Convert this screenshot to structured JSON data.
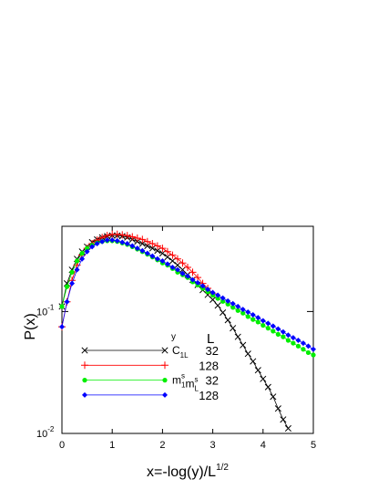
{
  "chart_data": {
    "type": "line",
    "log_y": true,
    "xlabel": {
      "text": "x=-log(y)/L",
      "sup": "1/2"
    },
    "ylabel": "P(x)",
    "xlim": [
      0,
      5
    ],
    "ylim": [
      0.01,
      0.5
    ],
    "xticks": [
      0,
      1,
      2,
      3,
      4,
      5
    ],
    "yticks": [
      {
        "value": 0.01,
        "label": "10",
        "exponent": "-2"
      },
      {
        "value": 0.1,
        "label": "10",
        "exponent": "-1"
      }
    ],
    "legend": {
      "title": "y",
      "L_header": "L"
    },
    "series": [
      {
        "name": [
          {
            "text": "C",
            "sub": "1L"
          }
        ],
        "L": 32,
        "color": "#000000",
        "marker": "x",
        "x": [
          0,
          0.1,
          0.2,
          0.3,
          0.4,
          0.5,
          0.6,
          0.7,
          0.8,
          0.9,
          1,
          1.1,
          1.2,
          1.3,
          1.4,
          1.5,
          1.6,
          1.7,
          1.8,
          1.9,
          2,
          2.1,
          2.2,
          2.3,
          2.4,
          2.5,
          2.6,
          2.7,
          2.8,
          2.9,
          3,
          3.1,
          3.2,
          3.3,
          3.4,
          3.5,
          3.6,
          3.7,
          3.8,
          3.9,
          4,
          4.1,
          4.2,
          4.3,
          4.4,
          4.5
        ],
        "values": [
          0.11,
          0.17,
          0.22,
          0.27,
          0.31,
          0.34,
          0.37,
          0.39,
          0.405,
          0.415,
          0.42,
          0.42,
          0.415,
          0.405,
          0.39,
          0.375,
          0.36,
          0.345,
          0.33,
          0.315,
          0.3,
          0.28,
          0.26,
          0.24,
          0.22,
          0.2,
          0.182,
          0.165,
          0.15,
          0.137,
          0.125,
          0.112,
          0.098,
          0.085,
          0.073,
          0.062,
          0.053,
          0.045,
          0.039,
          0.033,
          0.028,
          0.024,
          0.02,
          0.016,
          0.013,
          0.011
        ]
      },
      {
        "L": 128,
        "color": "#ff0000",
        "marker": "plus",
        "x": [
          0,
          0.1,
          0.2,
          0.3,
          0.4,
          0.5,
          0.6,
          0.7,
          0.8,
          0.9,
          1,
          1.1,
          1.2,
          1.3,
          1.4,
          1.5,
          1.6,
          1.7,
          1.8,
          1.9,
          2,
          2.1,
          2.2,
          2.3,
          2.4,
          2.5,
          2.6,
          2.7,
          2.8,
          2.9,
          3
        ],
        "values": [
          0.075,
          0.12,
          0.18,
          0.24,
          0.29,
          0.33,
          0.36,
          0.385,
          0.405,
          0.42,
          0.43,
          0.43,
          0.425,
          0.42,
          0.41,
          0.4,
          0.39,
          0.375,
          0.36,
          0.345,
          0.33,
          0.31,
          0.29,
          0.27,
          0.25,
          0.23,
          0.21,
          0.19,
          0.17,
          0.155,
          0.14
        ]
      },
      {
        "name": [
          {
            "text": "m",
            "sup": "s",
            "sub": "1"
          },
          {
            "text": "m",
            "sup": "s",
            "sub": "L"
          }
        ],
        "L": 32,
        "color": "#00ee00",
        "marker": "circle",
        "x": [
          0,
          0.1,
          0.2,
          0.3,
          0.4,
          0.5,
          0.6,
          0.7,
          0.8,
          0.9,
          1,
          1.1,
          1.2,
          1.3,
          1.4,
          1.5,
          1.6,
          1.7,
          1.8,
          1.9,
          2,
          2.1,
          2.2,
          2.3,
          2.4,
          2.5,
          2.6,
          2.7,
          2.8,
          2.9,
          3,
          3.1,
          3.2,
          3.3,
          3.4,
          3.5,
          3.6,
          3.7,
          3.8,
          3.9,
          4,
          4.1,
          4.2,
          4.3,
          4.4,
          4.5,
          4.6,
          4.7,
          4.8,
          4.9,
          5
        ],
        "values": [
          0.11,
          0.16,
          0.21,
          0.26,
          0.3,
          0.33,
          0.35,
          0.365,
          0.375,
          0.38,
          0.38,
          0.375,
          0.365,
          0.355,
          0.34,
          0.325,
          0.31,
          0.295,
          0.28,
          0.265,
          0.25,
          0.24,
          0.225,
          0.21,
          0.2,
          0.19,
          0.175,
          0.165,
          0.155,
          0.145,
          0.136,
          0.128,
          0.121,
          0.115,
          0.108,
          0.102,
          0.097,
          0.091,
          0.086,
          0.082,
          0.077,
          0.073,
          0.069,
          0.065,
          0.062,
          0.058,
          0.055,
          0.052,
          0.049,
          0.046,
          0.044
        ]
      },
      {
        "L": 128,
        "color": "#0000ff",
        "marker": "diamond",
        "x": [
          0,
          0.1,
          0.2,
          0.3,
          0.4,
          0.5,
          0.6,
          0.7,
          0.8,
          0.9,
          1,
          1.1,
          1.2,
          1.3,
          1.4,
          1.5,
          1.6,
          1.7,
          1.8,
          1.9,
          2,
          2.1,
          2.2,
          2.3,
          2.4,
          2.5,
          2.6,
          2.7,
          2.8,
          2.9,
          3,
          3.1,
          3.2,
          3.3,
          3.4,
          3.5,
          3.6,
          3.7,
          3.8,
          3.9,
          4,
          4.1,
          4.2,
          4.3,
          4.4,
          4.5,
          4.6,
          4.7,
          4.8,
          4.9,
          5
        ],
        "values": [
          0.075,
          0.12,
          0.17,
          0.22,
          0.27,
          0.31,
          0.34,
          0.36,
          0.375,
          0.385,
          0.385,
          0.38,
          0.37,
          0.36,
          0.345,
          0.33,
          0.315,
          0.3,
          0.285,
          0.27,
          0.26,
          0.245,
          0.23,
          0.22,
          0.205,
          0.195,
          0.182,
          0.172,
          0.162,
          0.152,
          0.143,
          0.136,
          0.129,
          0.122,
          0.116,
          0.11,
          0.104,
          0.099,
          0.094,
          0.089,
          0.084,
          0.08,
          0.076,
          0.072,
          0.068,
          0.064,
          0.061,
          0.058,
          0.055,
          0.052,
          0.049
        ]
      }
    ]
  }
}
